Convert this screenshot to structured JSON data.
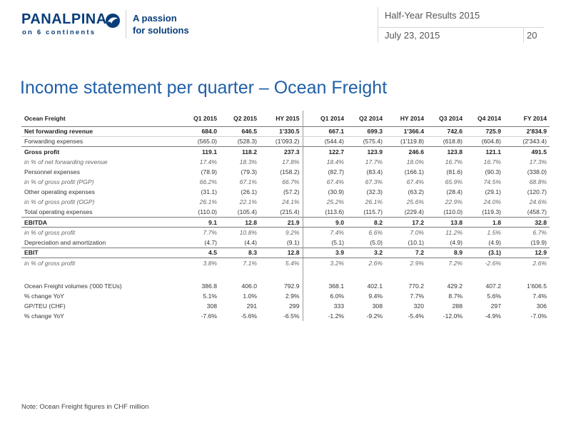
{
  "header": {
    "logo_word": "PANALPINA",
    "logo_sub": "on 6 continents",
    "tagline_line1": "A passion",
    "tagline_line2": "for solutions",
    "doc_title": "Half-Year Results 2015",
    "date": "July 23, 2015",
    "page_number": "20"
  },
  "title": "Income statement per quarter – Ocean Freight",
  "table": {
    "columns": [
      "Ocean Freight",
      "Q1 2015",
      "Q2 2015",
      "HY 2015",
      "Q1 2014",
      "Q2 2014",
      "HY 2014",
      "Q3 2014",
      "Q4 2014",
      "FY 2014"
    ],
    "rows": [
      {
        "label": "Net forwarding revenue",
        "values": [
          "684.0",
          "646.5",
          "1'330.5",
          "667.1",
          "699.3",
          "1'366.4",
          "742.6",
          "725.9",
          "2'834.9"
        ]
      },
      {
        "label": "Forwarding expenses",
        "values": [
          "(565.0)",
          "(528.3)",
          "(1'093.2)",
          "(544.4)",
          "(575.4)",
          "(1'119.8)",
          "(618.8)",
          "(604.8)",
          "(2'343.4)"
        ]
      },
      {
        "label": "Gross profit",
        "values": [
          "119.1",
          "118.2",
          "237.3",
          "122.7",
          "123.9",
          "246.6",
          "123.8",
          "121.1",
          "491.5"
        ]
      },
      {
        "label": "in % of net forwarding revenue",
        "values": [
          "17.4%",
          "18.3%",
          "17.8%",
          "18.4%",
          "17.7%",
          "18.0%",
          "16.7%",
          "16.7%",
          "17.3%"
        ]
      },
      {
        "label": "Personnel expenses",
        "values": [
          "(78.9)",
          "(79.3)",
          "(158.2)",
          "(82.7)",
          "(83.4)",
          "(166.1)",
          "(81.6)",
          "(90.3)",
          "(338.0)"
        ]
      },
      {
        "label": "in % of gross profit (PGP)",
        "values": [
          "66.2%",
          "67.1%",
          "66.7%",
          "67.4%",
          "67.3%",
          "67.4%",
          "65.9%",
          "74.5%",
          "68.8%"
        ]
      },
      {
        "label": "Other operating expenses",
        "values": [
          "(31.1)",
          "(26.1)",
          "(57.2)",
          "(30.9)",
          "(32.3)",
          "(63.2)",
          "(28.4)",
          "(29.1)",
          "(120.7)"
        ]
      },
      {
        "label": "in % of gross profit (OGP)",
        "values": [
          "26.1%",
          "22.1%",
          "24.1%",
          "25.2%",
          "26.1%",
          "25.6%",
          "22.9%",
          "24.0%",
          "24.6%"
        ]
      },
      {
        "label": "Total operating expenses",
        "values": [
          "(110.0)",
          "(105.4)",
          "(215.4)",
          "(113.6)",
          "(115.7)",
          "(229.4)",
          "(110.0)",
          "(119.3)",
          "(458.7)"
        ]
      },
      {
        "label": "EBITDA",
        "values": [
          "9.1",
          "12.8",
          "21.9",
          "9.0",
          "8.2",
          "17.2",
          "13.8",
          "1.8",
          "32.8"
        ]
      },
      {
        "label": "in % of gross profit",
        "values": [
          "7.7%",
          "10.8%",
          "9.2%",
          "7.4%",
          "6.6%",
          "7.0%",
          "11.2%",
          "1.5%",
          "6.7%"
        ]
      },
      {
        "label": "Depreciation and amortization",
        "values": [
          "(4.7)",
          "(4.4)",
          "(9.1)",
          "(5.1)",
          "(5.0)",
          "(10.1)",
          "(4.9)",
          "(4.9)",
          "(19.9)"
        ]
      },
      {
        "label": "EBIT",
        "values": [
          "4.5",
          "8.3",
          "12.8",
          "3.9",
          "3.2",
          "7.2",
          "8.9",
          "(3.1)",
          "12.9"
        ]
      },
      {
        "label": "in % of gross profit",
        "values": [
          "3.8%",
          "7.1%",
          "5.4%",
          "3.2%",
          "2.6%",
          "2.9%",
          "7.2%",
          "-2.6%",
          "2.6%"
        ]
      },
      {
        "label": "Ocean Freight volumes ('000 TEUs)",
        "values": [
          "386.8",
          "406.0",
          "792.9",
          "368.1",
          "402.1",
          "770.2",
          "429.2",
          "407.2",
          "1'606.5"
        ]
      },
      {
        "label": "% change YoY",
        "values": [
          "5.1%",
          "1.0%",
          "2.9%",
          "6.0%",
          "9.4%",
          "7.7%",
          "8.7%",
          "5.6%",
          "7.4%"
        ]
      },
      {
        "label": "GP/TEU (CHF)",
        "values": [
          "308",
          "291",
          "299",
          "333",
          "308",
          "320",
          "288",
          "297",
          "306"
        ]
      },
      {
        "label": "% change YoY",
        "values": [
          "-7.6%",
          "-5.6%",
          "-6.5%",
          "-1.2%",
          "-9.2%",
          "-5.4%",
          "-12.0%",
          "-4.9%",
          "-7.0%"
        ]
      }
    ]
  },
  "note": "Note: Ocean Freight figures in CHF million",
  "colors": {
    "brand": "#0a3d7a",
    "title": "#1f5fa8"
  }
}
